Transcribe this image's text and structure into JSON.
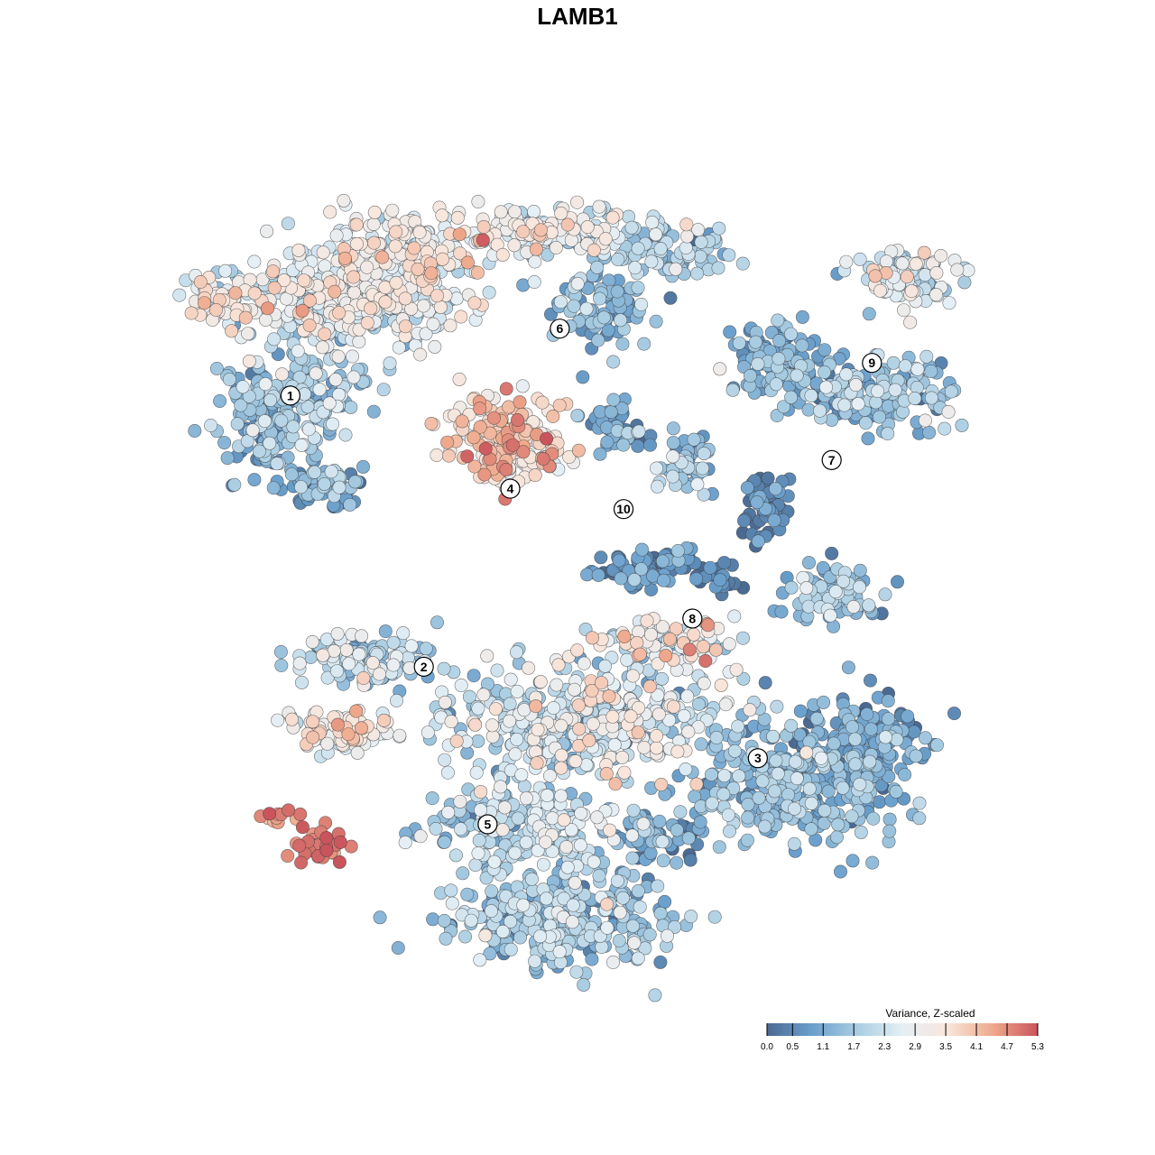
{
  "chart_data": {
    "type": "scatter",
    "title": "LAMB1",
    "xlabel": "",
    "ylabel": "",
    "grid": false,
    "legend": {
      "title": "Variance, Z-scaled",
      "placement": "bottom-right",
      "ticks": [
        "0.0",
        "0.5",
        "1.1",
        "1.7",
        "2.3",
        "2.9",
        "3.5",
        "4.1",
        "4.7",
        "5.3"
      ],
      "range": [
        0.0,
        5.3
      ],
      "colors": [
        "#4a6a92",
        "#6a9fcc",
        "#a9cde2",
        "#e5eff5",
        "#f8e6dc",
        "#efa98c",
        "#c9545c"
      ]
    },
    "clusters": [
      {
        "label": "1",
        "x": 0.131,
        "y": 0.72
      },
      {
        "label": "2",
        "x": 0.29,
        "y": 0.388
      },
      {
        "label": "3",
        "x": 0.688,
        "y": 0.276
      },
      {
        "label": "4",
        "x": 0.393,
        "y": 0.606
      },
      {
        "label": "5",
        "x": 0.366,
        "y": 0.195
      },
      {
        "label": "6",
        "x": 0.452,
        "y": 0.802
      },
      {
        "label": "7",
        "x": 0.776,
        "y": 0.641
      },
      {
        "label": "8",
        "x": 0.61,
        "y": 0.447
      },
      {
        "label": "9",
        "x": 0.824,
        "y": 0.76
      },
      {
        "label": "10",
        "x": 0.528,
        "y": 0.581
      }
    ]
  }
}
